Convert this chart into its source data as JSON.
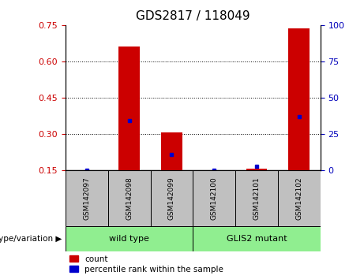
{
  "title": "GDS2817 / 118049",
  "samples": [
    "GSM142097",
    "GSM142098",
    "GSM142099",
    "GSM142100",
    "GSM142101",
    "GSM142102"
  ],
  "red_bar_heights": [
    0.15,
    0.66,
    0.305,
    0.15,
    0.155,
    0.735
  ],
  "blue_marker_values": [
    0.15,
    0.355,
    0.215,
    0.15,
    0.165,
    0.37
  ],
  "ylim_left": [
    0.15,
    0.75
  ],
  "yticks_left": [
    0.15,
    0.3,
    0.45,
    0.6,
    0.75
  ],
  "yticks_right": [
    0,
    25,
    50,
    75,
    100
  ],
  "ylim_right": [
    0,
    100
  ],
  "bar_width": 0.5,
  "red_color": "#CC0000",
  "blue_color": "#0000CC",
  "left_axis_color": "#CC0000",
  "right_axis_color": "#0000BB",
  "bg_plot": "#FFFFFF",
  "bg_xlabel": "#C0C0C0",
  "bg_group": "#90EE90",
  "legend_red_label": "count",
  "legend_blue_label": "percentile rank within the sample",
  "title_fontsize": 11,
  "tick_fontsize": 8,
  "sample_fontsize": 6.5,
  "group_fontsize": 8,
  "legend_fontsize": 7.5,
  "genotype_label": "genotype/variation",
  "group_ranges": [
    [
      -0.5,
      2.5,
      "wild type"
    ],
    [
      2.5,
      5.5,
      "GLIS2 mutant"
    ]
  ]
}
